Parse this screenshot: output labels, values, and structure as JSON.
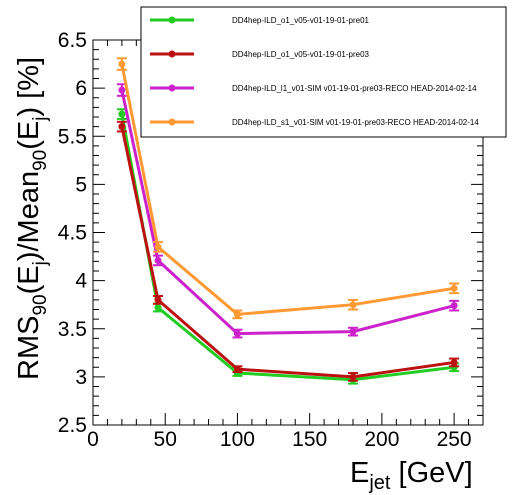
{
  "chart_data": {
    "type": "line",
    "title": "",
    "xlabel": {
      "main": "E",
      "sub": "jet",
      "unit": " [GeV]"
    },
    "ylabel": {
      "text": "RMS90(Ej)/Mean90(Ej) [%]"
    },
    "xlim": [
      0,
      270
    ],
    "ylim": [
      2.5,
      6.5
    ],
    "x_ticks": [
      0,
      50,
      100,
      150,
      200,
      250
    ],
    "y_ticks": [
      2.5,
      3,
      3.5,
      4,
      4.5,
      5,
      5.5,
      6,
      6.5
    ],
    "x_tick_labels": [
      "0",
      "50",
      "100",
      "150",
      "200",
      "250"
    ],
    "y_tick_labels": [
      "2.5",
      "3",
      "3.5",
      "4",
      "4.5",
      "5",
      "5.5",
      "6",
      "6.5"
    ],
    "grid": false,
    "legend_position": "top-right",
    "x": [
      20,
      45,
      100,
      180,
      250
    ],
    "series": [
      {
        "name": "DD4hep-ILD_o1_v05-v01-19-01-pre01",
        "color": "#22cc22",
        "values": [
          5.73,
          3.72,
          3.04,
          2.97,
          3.1
        ],
        "errors": [
          0.05,
          0.04,
          0.03,
          0.04,
          0.04
        ]
      },
      {
        "name": "DD4hep-ILD_o1_v05-v01-19-01-pre03",
        "color": "#bb1111",
        "values": [
          5.6,
          3.8,
          3.08,
          3.0,
          3.15
        ],
        "errors": [
          0.05,
          0.04,
          0.03,
          0.04,
          0.04
        ]
      },
      {
        "name": "DD4hep-ILD_l1_v01-SIM v01-19-01-pre03-RECO HEAD-2014-02-14",
        "color": "#cc22cc",
        "values": [
          5.98,
          4.21,
          3.45,
          3.47,
          3.74
        ],
        "errors": [
          0.06,
          0.05,
          0.04,
          0.04,
          0.05
        ]
      },
      {
        "name": "DD4hep-ILD_s1_v01-SIM v01-19-01-pre03-RECO HEAD-2014-02-14",
        "color": "#ff9933",
        "values": [
          6.25,
          4.35,
          3.65,
          3.75,
          3.92
        ],
        "errors": [
          0.06,
          0.05,
          0.04,
          0.05,
          0.05
        ]
      }
    ]
  }
}
